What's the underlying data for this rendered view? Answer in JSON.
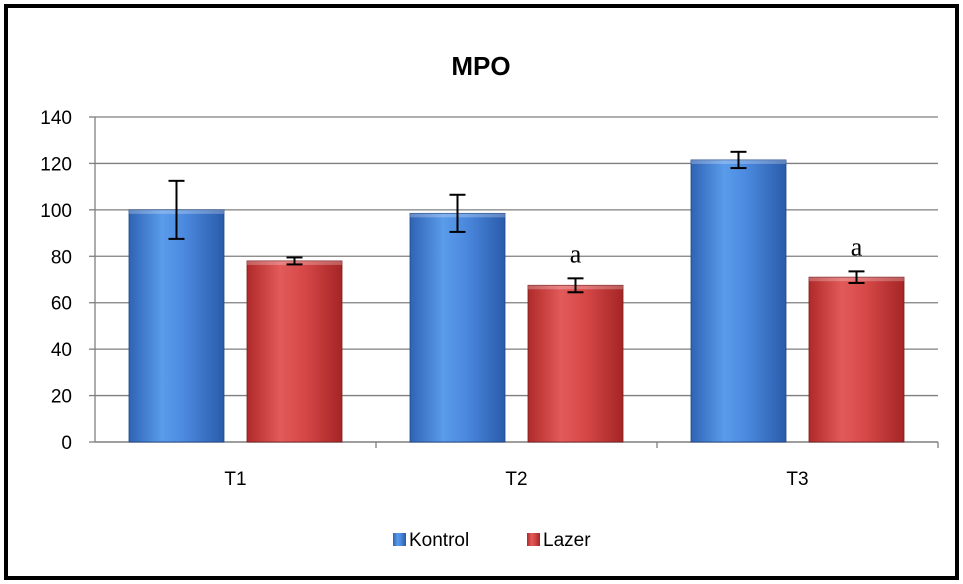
{
  "chart_data": {
    "type": "bar",
    "title": "MPO",
    "xlabel": "",
    "ylabel": "",
    "categories": [
      "T1",
      "T2",
      "T3"
    ],
    "ylim": [
      0,
      140
    ],
    "yticks": [
      0,
      20,
      40,
      60,
      80,
      100,
      120,
      140
    ],
    "grid": true,
    "legend_position": "bottom",
    "series": [
      {
        "name": "Kontrol",
        "color": "#3E7FD6",
        "values": [
          100,
          98.5,
          121.5
        ],
        "error": [
          12.5,
          8,
          3.5
        ],
        "annotations": [
          "",
          "",
          ""
        ]
      },
      {
        "name": "Lazer",
        "color": "#D13B3B",
        "values": [
          78,
          67.5,
          71
        ],
        "error": [
          1.5,
          3,
          2.5
        ],
        "annotations": [
          "",
          "a",
          "a"
        ]
      }
    ]
  }
}
